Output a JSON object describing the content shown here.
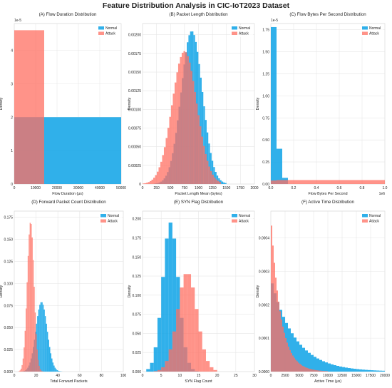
{
  "figure_title": "Feature Distribution Analysis in CIC-IoT2023 Dataset",
  "colors": {
    "normal": "#1aa7e8",
    "attack": "#ff6f61",
    "grid": "#e6e6e6",
    "text": "#222222"
  },
  "chart_data": [
    {
      "id": "A",
      "type": "bar",
      "title": "(A) Flow Duration Distribution",
      "xlabel": "Flow Duration (μs)",
      "ylabel": "Density",
      "exponent": "1e-5",
      "xlim": [
        0,
        50000
      ],
      "ylim": [
        0,
        4.8
      ],
      "xticks": [
        0,
        10000,
        20000,
        30000,
        40000,
        50000
      ],
      "xtick_labels": [
        "0",
        "10000",
        "20000",
        "30000",
        "40000",
        "50000"
      ],
      "yticks": [
        0,
        1,
        2,
        3,
        4
      ],
      "ytick_labels": [
        "0",
        "1",
        "2",
        "3",
        "4"
      ],
      "legend": {
        "position": "top-right",
        "entries": [
          "Normal",
          "Attack"
        ]
      },
      "series": [
        {
          "name": "Normal",
          "bins": [
            [
              0,
              50000,
              2.0
            ]
          ]
        },
        {
          "name": "Attack",
          "bins": [
            [
              0,
              14000,
              4.6
            ]
          ]
        }
      ]
    },
    {
      "id": "B",
      "type": "bar",
      "title": "(B) Packet Length Distribution",
      "xlabel": "Packet Length Mean (bytes)",
      "ylabel": "Density",
      "exponent": "",
      "xlim": [
        0,
        2000
      ],
      "ylim": [
        0,
        0.00215
      ],
      "xticks": [
        0,
        250,
        500,
        750,
        1000,
        1250,
        1500,
        1750,
        2000
      ],
      "xtick_labels": [
        "0",
        "250",
        "500",
        "750",
        "1000",
        "1250",
        "1500",
        "1750",
        "2000"
      ],
      "yticks": [
        0,
        0.00025,
        0.0005,
        0.00075,
        0.001,
        0.00125,
        0.0015,
        0.00175,
        0.002
      ],
      "ytick_labels": [
        "0",
        "0.00025",
        "0.00050",
        "0.00075",
        "0.00100",
        "0.00125",
        "0.00150",
        "0.00175",
        "0.00200"
      ],
      "legend": {
        "position": "top-right",
        "entries": [
          "Normal",
          "Attack"
        ]
      },
      "series": [
        {
          "name": "Normal",
          "mean": 880,
          "sd": 190,
          "peak": 0.00205,
          "range": [
            200,
            1500
          ],
          "bins_n": 44
        },
        {
          "name": "Attack",
          "mean": 750,
          "sd": 220,
          "peak": 0.00178,
          "range": [
            0,
            1400
          ],
          "bins_n": 44
        }
      ]
    },
    {
      "id": "C",
      "type": "bar",
      "title": "(C) Flow Bytes Per Second Distribution",
      "xlabel": "Flow Bytes Per Second",
      "ylabel": "Density",
      "exponent": "1e-5",
      "xexponent": "1e6",
      "xlim": [
        0,
        1000000
      ],
      "ylim": [
        0,
        1.82
      ],
      "xticks": [
        0,
        200000,
        400000,
        600000,
        800000,
        1000000
      ],
      "xtick_labels": [
        "0.0",
        "0.2",
        "0.4",
        "0.6",
        "0.8",
        "1.0"
      ],
      "yticks": [
        0,
        0.25,
        0.5,
        0.75,
        1.0,
        1.25,
        1.5,
        1.75
      ],
      "ytick_labels": [
        "0.00",
        "0.25",
        "0.50",
        "0.75",
        "1.00",
        "1.25",
        "1.50",
        "1.75"
      ],
      "legend": {
        "position": "top-right",
        "entries": [
          "Normal",
          "Attack"
        ]
      },
      "series": [
        {
          "name": "Normal",
          "bins": [
            [
              0,
              50000,
              1.78
            ],
            [
              50000,
              100000,
              0.4
            ],
            [
              100000,
              150000,
              0.07
            ]
          ]
        },
        {
          "name": "Attack",
          "bins": [
            [
              0,
              50000,
              0.04
            ],
            [
              50000,
              1000000,
              0.045
            ]
          ]
        }
      ]
    },
    {
      "id": "D",
      "type": "bar",
      "title": "(D) Forward Packet Count Distribution",
      "xlabel": "Total Forward Packets",
      "ylabel": "Density",
      "exponent": "",
      "xlim": [
        0,
        100
      ],
      "ylim": [
        0,
        0.182
      ],
      "xticks": [
        0,
        20,
        40,
        60,
        80,
        100
      ],
      "xtick_labels": [
        "0",
        "20",
        "40",
        "60",
        "80",
        "100"
      ],
      "yticks": [
        0,
        0.025,
        0.05,
        0.075,
        0.1,
        0.125,
        0.15,
        0.175
      ],
      "ytick_labels": [
        "0.000",
        "0.025",
        "0.050",
        "0.075",
        "0.100",
        "0.125",
        "0.150",
        "0.175"
      ],
      "legend": {
        "position": "top-right",
        "entries": [
          "Normal",
          "Attack"
        ]
      },
      "series": [
        {
          "name": "Normal",
          "mean": 25,
          "sd": 5.2,
          "peak": 0.079,
          "range": [
            6,
            44
          ],
          "bins_n": 38
        },
        {
          "name": "Attack",
          "mean": 15,
          "sd": 3.1,
          "peak": 0.17,
          "range": [
            4,
            28
          ],
          "bins_n": 26
        }
      ]
    },
    {
      "id": "E",
      "type": "bar",
      "title": "(E) SYN Flag Distribution",
      "xlabel": "SYN Flag Count",
      "ylabel": "Density",
      "exponent": "",
      "xlim": [
        0,
        30
      ],
      "ylim": [
        0,
        0.21
      ],
      "xticks": [
        0,
        5,
        10,
        15,
        20,
        25,
        30
      ],
      "xtick_labels": [
        "0",
        "5",
        "10",
        "15",
        "20",
        "25",
        "30"
      ],
      "yticks": [
        0,
        0.025,
        0.05,
        0.075,
        0.1,
        0.125,
        0.15,
        0.175,
        0.2
      ],
      "ytick_labels": [
        "0.000",
        "0.025",
        "0.050",
        "0.075",
        "0.100",
        "0.125",
        "0.150",
        "0.175",
        "0.200"
      ],
      "legend": {
        "position": "top-right",
        "entries": [
          "Normal",
          "Attack"
        ]
      },
      "series": [
        {
          "name": "Normal",
          "mean": 7.5,
          "sd": 2.1,
          "peak": 0.195,
          "range": [
            1,
            15
          ],
          "bins_n": 14
        },
        {
          "name": "Attack",
          "mean": 12,
          "sd": 2.6,
          "peak": 0.13,
          "range": [
            3,
            20
          ],
          "bins_n": 17
        }
      ]
    },
    {
      "id": "F",
      "type": "bar",
      "title": "(F) Active Time Distribution",
      "xlabel": "Active Time (μs)",
      "ylabel": "Density",
      "exponent": "",
      "xlim": [
        0,
        20000
      ],
      "ylim": [
        0,
        0.00048
      ],
      "xticks": [
        0,
        2500,
        5000,
        7500,
        10000,
        12500,
        15000,
        17500,
        20000
      ],
      "xtick_labels": [
        "0",
        "2500",
        "5000",
        "7500",
        "10000",
        "12500",
        "15000",
        "17500",
        "20000"
      ],
      "yticks": [
        0,
        0.0001,
        0.0002,
        0.0003,
        0.0004
      ],
      "ytick_labels": [
        "0.0000",
        "0.0001",
        "0.0002",
        "0.0003",
        "0.0004"
      ],
      "legend": {
        "position": "top-right",
        "entries": [
          "Normal",
          "Attack"
        ]
      },
      "series": [
        {
          "name": "Normal",
          "exp_scale": 4200,
          "peak": 0.00028,
          "range": [
            0,
            20000
          ],
          "bins_n": 40
        },
        {
          "name": "Attack",
          "exp_scale": 1700,
          "peak": 0.00047,
          "range": [
            0,
            10000
          ],
          "bins_n": 40
        }
      ]
    }
  ]
}
